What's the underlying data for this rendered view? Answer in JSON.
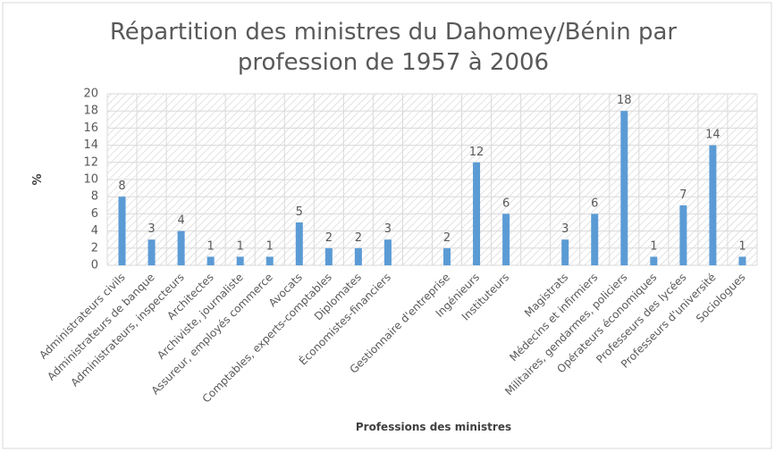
{
  "chart_data": {
    "type": "bar",
    "title": [
      "Répartition des ministres du Dahomey/Bénin par",
      "profession de 1957 à 2006"
    ],
    "x_label": "Professions des ministres",
    "y_label": "%",
    "categories": [
      "Administrateurs civils",
      "Administrateurs de banque",
      "Administrateurs, inspecteurs",
      "Architectes",
      "Archiviste, journaliste",
      "Assureur, employés commerce",
      "Avocats",
      "Comptables, experts-comptables",
      "Diplomates",
      "Économistes-financiers",
      null,
      "Gestionnaire d'entreprise",
      "Ingénieurs",
      "Instituteurs",
      null,
      "Magistrats",
      "Médecins et infirmiers",
      "Militaires, gendarmes, policiers",
      "Opérateurs économiques",
      "Professeurs des lycées",
      "Professeurs d'université",
      "Sociologues"
    ],
    "values": [
      8,
      3,
      4,
      1,
      1,
      1,
      5,
      2,
      2,
      3,
      null,
      2,
      12,
      6,
      null,
      3,
      6,
      18,
      1,
      7,
      14,
      1
    ],
    "color": "#5b9bd5",
    "ylim": [
      0,
      20
    ],
    "yticks": [
      0,
      2,
      4,
      6,
      8,
      10,
      12,
      14,
      16,
      18,
      20
    ],
    "grid": true
  }
}
